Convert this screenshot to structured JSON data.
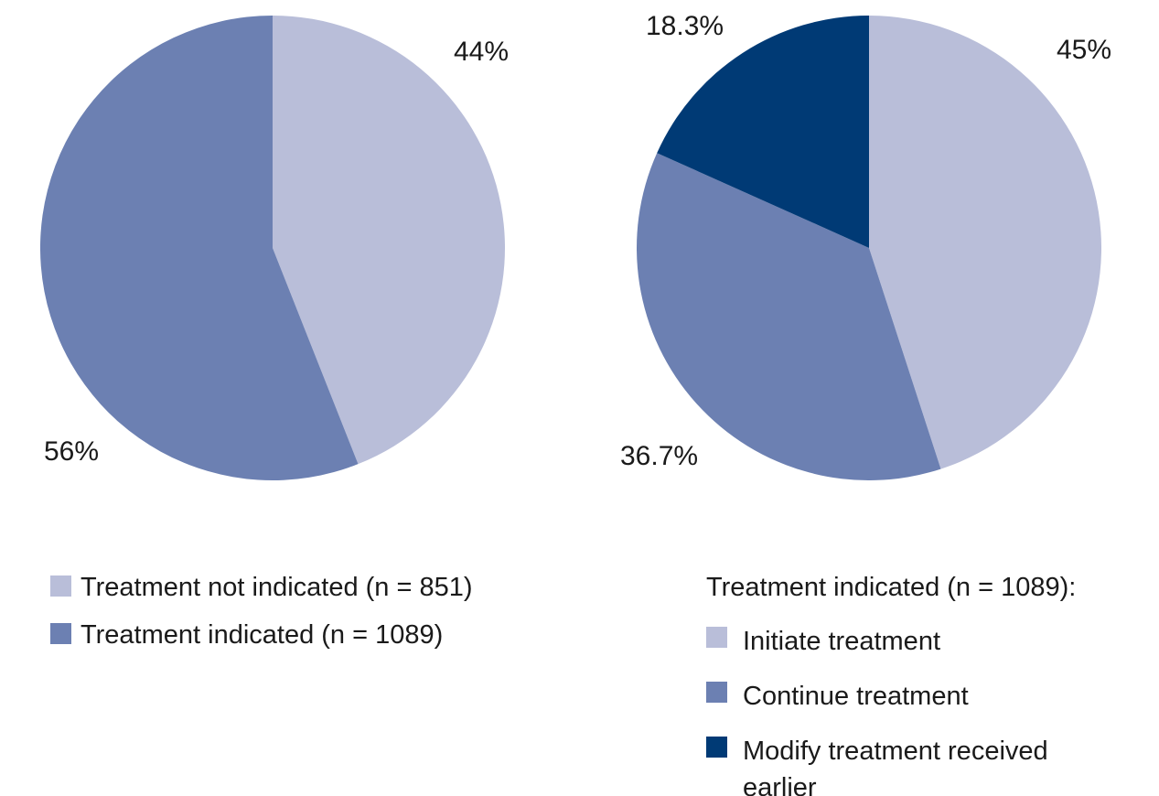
{
  "palette": {
    "light_blue": "#b9bed9",
    "medium_blue": "#6c80b2",
    "dark_blue": "#003a75",
    "text": "#1a1a1a",
    "background": "#ffffff"
  },
  "chart_data": [
    {
      "type": "pie",
      "title": "",
      "start_angle_deg": 0,
      "direction": "clockwise",
      "slices": [
        {
          "label": "Treatment not indicated (n = 851)",
          "value": 44,
          "pct_label": "44%",
          "color": "light_blue",
          "n": 851
        },
        {
          "label": "Treatment indicated (n = 1089)",
          "value": 56,
          "pct_label": "56%",
          "color": "medium_blue",
          "n": 1089
        }
      ],
      "legend": {
        "position": "below-left",
        "items": [
          {
            "swatch": "light_blue",
            "label": "Treatment not indicated (n = 851)"
          },
          {
            "swatch": "medium_blue",
            "label": "Treatment indicated (n = 1089)"
          }
        ]
      }
    },
    {
      "type": "pie",
      "title": "Treatment indicated (n = 1089):",
      "start_angle_deg": 0,
      "direction": "clockwise",
      "slices": [
        {
          "label": "Initiate treatment",
          "value": 45,
          "pct_label": "45%",
          "color": "light_blue"
        },
        {
          "label": "Continue treatment",
          "value": 36.7,
          "pct_label": "36.7%",
          "color": "medium_blue"
        },
        {
          "label": "Modify treatment received earlier",
          "value": 18.3,
          "pct_label": "18.3%",
          "color": "dark_blue"
        }
      ],
      "legend": {
        "position": "below-right",
        "header": "Treatment indicated (n = 1089):",
        "items": [
          {
            "swatch": "light_blue",
            "label": "Initiate treatment"
          },
          {
            "swatch": "medium_blue",
            "label": "Continue treatment"
          },
          {
            "swatch": "dark_blue",
            "label": "Modify treatment received earlier"
          }
        ]
      }
    }
  ]
}
